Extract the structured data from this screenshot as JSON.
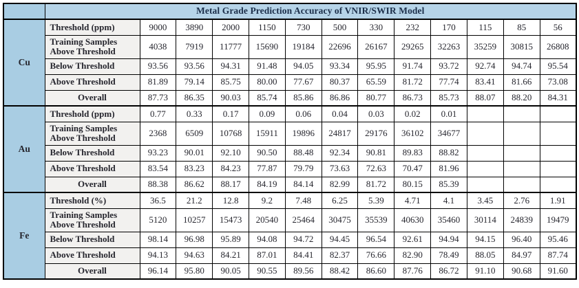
{
  "title": "Metal Grade Prediction Accuracy of VNIR/SWIR Model",
  "colors": {
    "blue": "#a9cde3",
    "blue_light": "#b6d4e8",
    "gray": "#f2f1ef",
    "border": "#000000",
    "title_text": "#1c2f4a",
    "body_text": "#26262e"
  },
  "table": {
    "sections": [
      {
        "metal": "Cu",
        "rows": [
          {
            "label": "Threshold (ppm)",
            "label_align": "left",
            "values": [
              "9000",
              "3890",
              "2000",
              "1150",
              "730",
              "500",
              "330",
              "232",
              "170",
              "115",
              "85",
              "56"
            ]
          },
          {
            "label": "Training Samples Above Threshold",
            "label_align": "left",
            "values": [
              "4038",
              "7919",
              "11777",
              "15690",
              "19184",
              "22696",
              "26167",
              "29265",
              "32263",
              "35259",
              "30815",
              "26808"
            ]
          },
          {
            "label": "Below Threshold",
            "label_align": "left",
            "values": [
              "93.56",
              "93.56",
              "94.31",
              "91.48",
              "94.05",
              "93.34",
              "95.95",
              "91.74",
              "93.72",
              "92.74",
              "94.74",
              "95.54"
            ]
          },
          {
            "label": "Above Threshold",
            "label_align": "left",
            "values": [
              "81.89",
              "79.14",
              "85.75",
              "80.00",
              "77.67",
              "80.37",
              "65.59",
              "81.72",
              "77.74",
              "83.41",
              "81.66",
              "73.08"
            ]
          },
          {
            "label": "Overall",
            "label_align": "center",
            "values": [
              "87.73",
              "86.35",
              "90.03",
              "85.74",
              "85.86",
              "86.86",
              "80.77",
              "86.73",
              "85.73",
              "88.07",
              "88.20",
              "84.31"
            ]
          }
        ]
      },
      {
        "metal": "Au",
        "rows": [
          {
            "label": "Threshold (ppm)",
            "label_align": "left",
            "values": [
              "0.77",
              "0.33",
              "0.17",
              "0.09",
              "0.06",
              "0.04",
              "0.03",
              "0.02",
              "0.01",
              "",
              "",
              ""
            ]
          },
          {
            "label": "Training Samples Above Threshold",
            "label_align": "left",
            "values": [
              "2368",
              "6509",
              "10768",
              "15911",
              "19896",
              "24817",
              "29176",
              "36102",
              "34677",
              "",
              "",
              ""
            ]
          },
          {
            "label": "Below Threshold",
            "label_align": "left",
            "values": [
              "93.23",
              "90.01",
              "92.10",
              "90.50",
              "88.48",
              "92.34",
              "90.81",
              "89.83",
              "88.82",
              "",
              "",
              ""
            ]
          },
          {
            "label": "Above Threshold",
            "label_align": "left",
            "values": [
              "83.54",
              "83.23",
              "84.23",
              "77.87",
              "79.79",
              "73.63",
              "72.63",
              "70.47",
              "81.96",
              "",
              "",
              ""
            ]
          },
          {
            "label": "Overall",
            "label_align": "center",
            "values": [
              "88.38",
              "86.62",
              "88.17",
              "84.19",
              "84.14",
              "82.99",
              "81.72",
              "80.15",
              "85.39",
              "",
              "",
              ""
            ]
          }
        ]
      },
      {
        "metal": "Fe",
        "rows": [
          {
            "label": "Threshold (%)",
            "label_align": "left",
            "values": [
              "36.5",
              "21.2",
              "12.8",
              "9.2",
              "7.48",
              "6.25",
              "5.39",
              "4.71",
              "4.1",
              "3.45",
              "2.76",
              "1.91"
            ]
          },
          {
            "label": "Training Samples Above Threshold",
            "label_align": "left",
            "values": [
              "5120",
              "10257",
              "15473",
              "20540",
              "25464",
              "30475",
              "35539",
              "40630",
              "35460",
              "30114",
              "24839",
              "19479"
            ]
          },
          {
            "label": "Below Threshold",
            "label_align": "left",
            "values": [
              "98.14",
              "96.98",
              "95.89",
              "94.08",
              "94.72",
              "94.45",
              "96.54",
              "92.61",
              "94.94",
              "94.15",
              "96.40",
              "95.46"
            ]
          },
          {
            "label": "Above Threshold",
            "label_align": "left",
            "values": [
              "94.13",
              "94.63",
              "84.21",
              "87.01",
              "84.41",
              "82.37",
              "76.66",
              "82.90",
              "78.49",
              "88.05",
              "84.97",
              "87.74"
            ]
          },
          {
            "label": "Overall",
            "label_align": "center",
            "values": [
              "96.14",
              "95.80",
              "90.05",
              "90.55",
              "89.56",
              "88.42",
              "86.60",
              "87.76",
              "86.72",
              "91.10",
              "90.68",
              "91.60"
            ]
          }
        ]
      }
    ]
  }
}
